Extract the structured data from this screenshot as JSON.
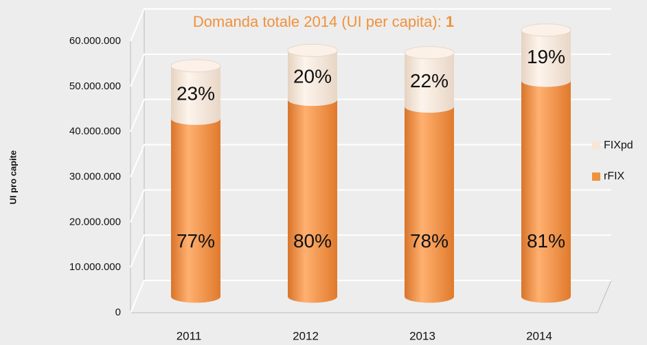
{
  "chart_data": {
    "type": "bar3d-stacked",
    "title": "Domanda totale 2014 (UI per capita):",
    "title_value": "1",
    "ylabel": "UI pro capite",
    "categories": [
      "2011",
      "2012",
      "2013",
      "2014"
    ],
    "series": [
      {
        "name": "rFIX",
        "color": "#f0913c",
        "values": [
          39300000,
          43500000,
          42000000,
          47700000
        ],
        "share_labels": [
          "77%",
          "80%",
          "78%",
          "81%"
        ]
      },
      {
        "name": "FIXpd",
        "color": "#f5e6d8",
        "values": [
          11700000,
          10900000,
          11900000,
          11200000
        ],
        "share_labels": [
          "23%",
          "20%",
          "22%",
          "19%"
        ]
      }
    ],
    "ylim": [
      0,
      60000000
    ],
    "yticks": [
      0,
      {
        "value": 10000000,
        "label": "10.000.000"
      },
      {
        "value": 20000000,
        "label": "20.000.000"
      },
      {
        "value": 30000000,
        "label": "30.000.000"
      },
      {
        "value": 40000000,
        "label": "40.000.000"
      },
      {
        "value": 50000000,
        "label": "50.000.000"
      },
      {
        "value": 60000000,
        "label": "60.000.000"
      }
    ],
    "grid": true,
    "legend": "right"
  }
}
